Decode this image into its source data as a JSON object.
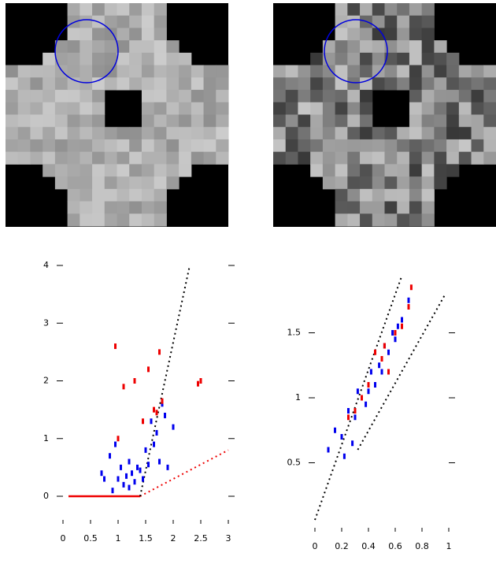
{
  "chart_data": [
    {
      "type": "scatter",
      "xlim": [
        0,
        3
      ],
      "ylim": [
        0,
        4
      ],
      "xticks": [
        0,
        0.5,
        1,
        1.5,
        2,
        2.5,
        3
      ],
      "yticks": [
        0,
        1,
        2,
        3,
        4
      ],
      "series": [
        {
          "color": "#0000ee",
          "x": [
            0.7,
            0.75,
            0.85,
            0.9,
            1.0,
            1.05,
            1.1,
            1.15,
            1.2,
            1.25,
            1.3,
            1.35,
            1.4,
            1.45,
            1.5,
            1.55,
            1.6,
            1.65,
            1.7,
            1.75,
            1.8,
            1.85,
            1.9,
            2.0,
            1.2,
            0.95
          ],
          "values": [
            0.4,
            0.3,
            0.7,
            0.1,
            0.3,
            0.5,
            0.2,
            0.35,
            0.6,
            0.4,
            0.25,
            0.5,
            0.45,
            0.3,
            0.8,
            0.55,
            1.3,
            0.9,
            1.1,
            0.6,
            1.6,
            1.4,
            0.5,
            1.2,
            0.15,
            0.9
          ]
        },
        {
          "color": "#ee0000",
          "x": [
            0.95,
            1.1,
            1.3,
            1.45,
            1.65,
            1.7,
            1.75,
            2.5,
            2.45,
            1.55,
            1.8,
            1.0
          ],
          "values": [
            2.6,
            1.9,
            2.0,
            1.3,
            1.5,
            1.45,
            2.5,
            2.0,
            1.95,
            2.2,
            1.65,
            1.0
          ]
        }
      ],
      "lines": [
        {
          "color": "#ee0000",
          "dotted": false,
          "x": [
            0.1,
            1.4
          ],
          "values": [
            0,
            0
          ]
        },
        {
          "color": "#ee0000",
          "dotted": true,
          "x": [
            1.4,
            3
          ],
          "values": [
            0,
            0.8
          ]
        },
        {
          "color": "#000000",
          "dotted": true,
          "x": [
            1.4,
            2.3
          ],
          "values": [
            0,
            4
          ]
        }
      ]
    },
    {
      "type": "scatter",
      "xlim": [
        0,
        1
      ],
      "ylim": [
        0,
        2
      ],
      "xticks": [
        0,
        0.2,
        0.4,
        0.6,
        0.8,
        1
      ],
      "yticks": [
        0.5,
        1,
        1.5
      ],
      "series": [
        {
          "color": "#0000ee",
          "x": [
            0.1,
            0.15,
            0.2,
            0.25,
            0.3,
            0.35,
            0.4,
            0.45,
            0.5,
            0.55,
            0.6,
            0.65,
            0.7,
            0.28,
            0.38,
            0.48,
            0.58,
            0.22,
            0.32,
            0.42,
            0.52,
            0.62
          ],
          "values": [
            0.6,
            0.75,
            0.7,
            0.9,
            0.85,
            1.0,
            1.05,
            1.1,
            1.2,
            1.35,
            1.45,
            1.6,
            1.75,
            0.65,
            0.95,
            1.25,
            1.5,
            0.55,
            1.05,
            1.2,
            1.4,
            1.55
          ]
        },
        {
          "color": "#ee0000",
          "x": [
            0.25,
            0.3,
            0.35,
            0.45,
            0.5,
            0.52,
            0.55,
            0.6,
            0.65,
            0.7,
            0.72,
            0.4
          ],
          "values": [
            0.85,
            0.9,
            1.0,
            1.35,
            1.3,
            1.4,
            1.2,
            1.5,
            1.55,
            1.7,
            1.85,
            1.1
          ]
        }
      ],
      "lines": [
        {
          "color": "#000000",
          "dotted": true,
          "x": [
            0,
            0.65
          ],
          "values": [
            0.06,
            1.94
          ]
        },
        {
          "color": "#000000",
          "dotted": true,
          "x": [
            0.32,
            0.97
          ],
          "values": [
            0.6,
            1.79
          ]
        }
      ]
    }
  ]
}
